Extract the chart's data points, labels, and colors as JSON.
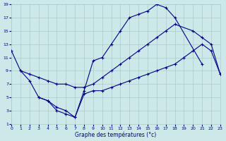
{
  "xlabel": "Graphe des températures (°c)",
  "bg_color": "#cce8e8",
  "line_color": "#00008b",
  "grid_color": "#aacccc",
  "xlim": [
    0,
    23
  ],
  "ylim": [
    1,
    19
  ],
  "xticks": [
    0,
    1,
    2,
    3,
    4,
    5,
    6,
    7,
    8,
    9,
    10,
    11,
    12,
    13,
    14,
    15,
    16,
    17,
    18,
    19,
    20,
    21,
    22,
    23
  ],
  "yticks": [
    1,
    3,
    5,
    7,
    9,
    11,
    13,
    15,
    17,
    19
  ],
  "curve1_x": [
    0,
    1,
    2,
    3,
    4,
    5,
    6,
    7,
    8,
    9,
    10,
    11,
    12,
    13,
    14,
    15,
    16,
    17,
    18,
    21
  ],
  "curve1_y": [
    12,
    9,
    7.5,
    5,
    4.5,
    3,
    2.5,
    2,
    6,
    10.5,
    11,
    13,
    15,
    17,
    17.5,
    18,
    19,
    18.5,
    17,
    10
  ],
  "curve2_x": [
    1,
    2,
    3,
    4,
    5,
    6,
    7,
    8,
    9,
    10,
    11,
    12,
    13,
    14,
    15,
    16,
    17,
    18,
    20,
    21,
    22,
    23
  ],
  "curve2_y": [
    9,
    8.5,
    8,
    7.5,
    7,
    7,
    6.5,
    6.5,
    7,
    8,
    9,
    10,
    11,
    12,
    13,
    14,
    15,
    16,
    15,
    14,
    13,
    8.5
  ],
  "curve3_x": [
    3,
    4,
    5,
    6,
    7,
    8,
    9,
    10,
    11,
    12,
    13,
    14,
    15,
    16,
    17,
    18,
    19,
    20,
    21,
    22,
    23
  ],
  "curve3_y": [
    5,
    4.5,
    3.5,
    3,
    2,
    5.5,
    6,
    6,
    6.5,
    7,
    7.5,
    8,
    8.5,
    9,
    9.5,
    10,
    11,
    12,
    13,
    12,
    8.5
  ]
}
